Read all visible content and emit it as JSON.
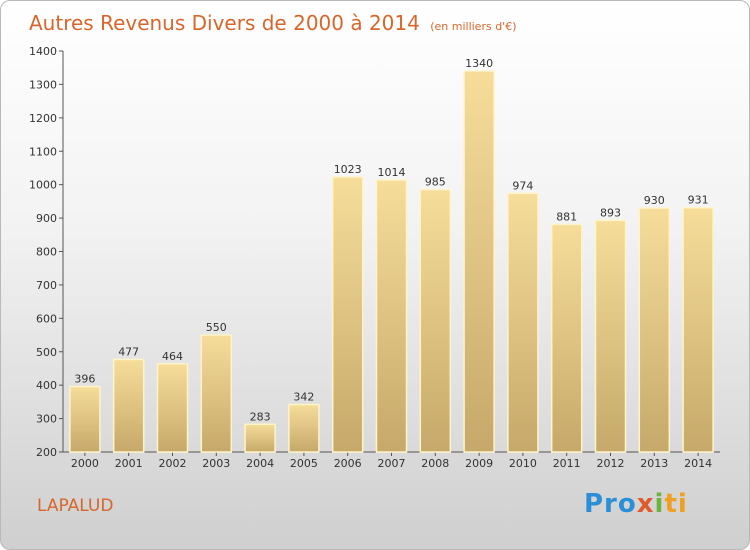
{
  "header": {
    "title": "Autres Revenus Divers de 2000 à 2014",
    "unit": "(en milliers d'€)"
  },
  "footer": {
    "place": "LAPALUD",
    "logo": {
      "p1": "Pro",
      "p2": "x",
      "p3": "i",
      "p4": "ti"
    }
  },
  "colors": {
    "title": "#d8662a",
    "bar_top": "#f6dd9a",
    "bar_bottom": "#c6a96a",
    "bar_border": "#fff3c8"
  },
  "chart_data": {
    "type": "bar",
    "title": "Autres Revenus Divers de 2000 à 2014",
    "subtitle": "(en milliers d'€)",
    "xlabel": "",
    "ylabel": "",
    "categories": [
      "2000",
      "2001",
      "2002",
      "2003",
      "2004",
      "2005",
      "2006",
      "2007",
      "2008",
      "2009",
      "2010",
      "2011",
      "2012",
      "2013",
      "2014"
    ],
    "values": [
      396,
      477,
      464,
      550,
      283,
      342,
      1023,
      1014,
      985,
      1340,
      974,
      881,
      893,
      930,
      931
    ],
    "ylim": [
      200,
      1400
    ],
    "yticks": [
      200,
      300,
      400,
      500,
      600,
      700,
      800,
      900,
      1000,
      1100,
      1200,
      1300,
      1400
    ],
    "grid": false,
    "legend": "none"
  }
}
